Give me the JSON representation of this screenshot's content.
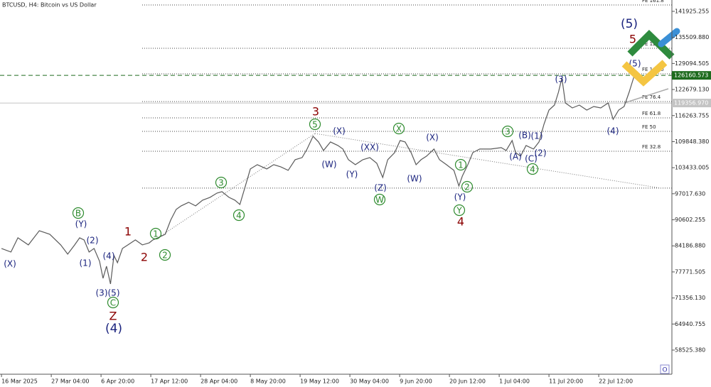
{
  "chart_data": {
    "type": "line",
    "title": "BTCUSD, H4:  Bitcoin vs US Dollar",
    "color": "#5a5a5a",
    "xlim": [
      -0.03,
      13.47
    ],
    "xticks": [
      {
        "value": 0,
        "label": "16 Mar 2025"
      },
      {
        "value": 1,
        "label": "27 Mar 04:00"
      },
      {
        "value": 2,
        "label": "6 Apr 20:00"
      },
      {
        "value": 3,
        "label": "17 Apr 12:00"
      },
      {
        "value": 4,
        "label": "28 Apr 04:00"
      },
      {
        "value": 5,
        "label": "8 May 20:00"
      },
      {
        "value": 6,
        "label": "19 May 12:00"
      },
      {
        "value": 7,
        "label": "30 May 04:00"
      },
      {
        "value": 8,
        "label": "9 Jun 20:00"
      },
      {
        "value": 9,
        "label": "20 Jun 12:00"
      },
      {
        "value": 10,
        "label": "1 Jul 04:00"
      },
      {
        "value": 11,
        "label": "11 Jul 20:00"
      },
      {
        "value": 12,
        "label": "22 Jul 12:00"
      }
    ],
    "ylim": [
      52580,
      144720
    ],
    "yticks": [
      141925.255,
      {
        "value": 135509.88,
        "label": "135509.880"
      },
      129094.505,
      {
        "value": 122679.13,
        "label": "122679.130"
      },
      116263.755,
      {
        "value": 109848.38,
        "label": "109848.380"
      },
      103433.005,
      {
        "value": 97017.63,
        "label": "97017.630"
      },
      90602.255,
      {
        "value": 84186.88,
        "label": "84186.880"
      },
      77771.505,
      {
        "value": 71356.13,
        "label": "71356.130"
      },
      64940.755,
      {
        "value": 58525.38,
        "label": "58525.380"
      }
    ],
    "x": [
      0,
      0.19,
      0.33,
      0.54,
      0.76,
      0.97,
      1.19,
      1.33,
      1.47,
      1.57,
      1.66,
      1.76,
      1.86,
      1.97,
      2.04,
      2.11,
      2.19,
      2.26,
      2.33,
      2.43,
      2.54,
      2.69,
      2.83,
      2.97,
      3.04,
      3.14,
      3.29,
      3.4,
      3.51,
      3.61,
      3.76,
      3.9,
      4.04,
      4.19,
      4.33,
      4.43,
      4.57,
      4.69,
      4.79,
      4.9,
      5,
      5.14,
      5.33,
      5.47,
      5.61,
      5.76,
      5.9,
      6.04,
      6.14,
      6.26,
      6.37,
      6.47,
      6.61,
      6.76,
      6.86,
      6.97,
      7.11,
      7.26,
      7.4,
      7.54,
      7.66,
      7.76,
      7.9,
      8.01,
      8.11,
      8.23,
      8.33,
      8.43,
      8.54,
      8.69,
      8.8,
      8.94,
      9.09,
      9.19,
      9.26,
      9.37,
      9.47,
      9.61,
      9.83,
      10.04,
      10.14,
      10.26,
      10.33,
      10.43,
      10.54,
      10.69,
      10.8,
      10.9,
      11,
      11.11,
      11.19,
      11.26,
      11.33,
      11.47,
      11.61,
      11.76,
      11.9,
      12.04,
      12.19,
      12.29,
      12.4,
      12.51,
      12.61,
      12.73
    ],
    "values": [
      83542,
      82668,
      86164,
      84416,
      87912,
      87038,
      84416,
      82143,
      84416,
      86164,
      85639,
      82668,
      83542,
      80395,
      76200,
      79172,
      74802,
      81794,
      80046,
      83542,
      84416,
      85639,
      84416,
      84940,
      85639,
      86164,
      87038,
      90534,
      93156,
      94030,
      94904,
      94030,
      95428,
      96127,
      97176,
      97526,
      96127,
      95428,
      94379,
      98924,
      103119,
      104168,
      103119,
      104168,
      103644,
      102770,
      105392,
      105916,
      108014,
      111160,
      109762,
      107664,
      109762,
      108888,
      108014,
      105392,
      104168,
      105392,
      105916,
      104518,
      101022,
      105392,
      107140,
      110111,
      109762,
      107140,
      104168,
      105392,
      106266,
      108014,
      105392,
      104168,
      102770,
      98924,
      101371,
      104168,
      107140,
      108014,
      108014,
      108363,
      107664,
      110111,
      107140,
      106266,
      108888,
      108014,
      109762,
      114132,
      117628,
      118851,
      121998,
      125494,
      119376,
      118152,
      118851,
      117628,
      118502,
      118152,
      119376,
      115355,
      117628,
      118502,
      121998,
      126717
    ],
    "levels": [
      {
        "label": "FE 161.8",
        "value": 143498
      },
      {
        "label": "FE 127.2",
        "value": 132835
      },
      {
        "label": "FE 100.0",
        "value": 126543
      },
      {
        "label": "FE 76.4",
        "value": 119726
      },
      {
        "label": "FE 61.8",
        "value": 115705
      },
      {
        "label": "FE 50",
        "value": 112384
      },
      {
        "label": "FE 32.8",
        "value": 107490
      },
      {
        "value": 98400
      }
    ],
    "target_price": {
      "value": 126160.573,
      "label": "126160.573",
      "color": "#1e6b1e"
    },
    "last_price": {
      "value": 119356.97,
      "label": "119356.970",
      "color": "#c4c4c4"
    },
    "annotations": [
      {
        "text": "B",
        "color": "#2e8b2e",
        "circled": true
      },
      {
        "text": "1",
        "color": "#2e8b2e",
        "circled": true
      },
      {
        "text": "2",
        "color": "#2e8b2e",
        "circled": true
      },
      {
        "text": "3",
        "color": "#2e8b2e",
        "circled": true
      },
      {
        "text": "4",
        "color": "#2e8b2e",
        "circled": true
      },
      {
        "text": "5",
        "color": "#2e8b2e",
        "circled": true
      },
      {
        "text": "X",
        "color": "#2e8b2e",
        "circled": true
      },
      {
        "text": "W",
        "color": "#2e8b2e",
        "circled": true
      },
      {
        "text": "3",
        "color": "#2e8b2e",
        "circled": true
      },
      {
        "text": "1",
        "color": "#2e8b2e",
        "circled": true
      },
      {
        "text": "2",
        "color": "#2e8b2e",
        "circled": true
      },
      {
        "text": "Y",
        "color": "#2e8b2e",
        "circled": true
      },
      {
        "text": "C",
        "color": "#2e8b2e",
        "circled": true
      },
      {
        "text": "4",
        "color": "#2e8b2e",
        "circled": true
      },
      {
        "text": "(X)",
        "color": "#1a237e"
      },
      {
        "text": "(Y)",
        "color": "#1a237e"
      },
      {
        "text": "(2)",
        "color": "#1a237e"
      },
      {
        "text": "(1)",
        "color": "#1a237e"
      },
      {
        "text": "(4)",
        "color": "#1a237e"
      },
      {
        "text": "(3)",
        "color": "#1a237e"
      },
      {
        "text": "(5)",
        "color": "#1a237e"
      },
      {
        "text": "(X)",
        "color": "#1a237e"
      },
      {
        "text": "(W)",
        "color": "#1a237e"
      },
      {
        "text": "(Y)",
        "color": "#1a237e"
      },
      {
        "text": "(XX)",
        "color": "#1a237e"
      },
      {
        "text": "(X)",
        "color": "#1a237e"
      },
      {
        "text": "(Z)",
        "color": "#1a237e"
      },
      {
        "text": "(W)",
        "color": "#1a237e"
      },
      {
        "text": "(Y)",
        "color": "#1a237e"
      },
      {
        "text": "(A)",
        "color": "#1a237e"
      },
      {
        "text": "(B)",
        "color": "#1a237e"
      },
      {
        "text": "(1)",
        "color": "#1a237e"
      },
      {
        "text": "(C)",
        "color": "#1a237e"
      },
      {
        "text": "(2)",
        "color": "#1a237e"
      },
      {
        "text": "(3)",
        "color": "#1a237e"
      },
      {
        "text": "(4)",
        "color": "#1a237e"
      },
      {
        "text": "(5)",
        "color": "#1a237e"
      },
      {
        "text": "(4)",
        "color": "#1a237e"
      },
      {
        "text": "(5)",
        "color": "#1a237e"
      },
      {
        "text": "1",
        "color": "#8b0000"
      },
      {
        "text": "2",
        "color": "#8b0000"
      },
      {
        "text": "3",
        "color": "#8b0000"
      },
      {
        "text": "4",
        "color": "#8b0000"
      },
      {
        "text": "5",
        "color": "#8b0000"
      },
      {
        "text": "Z",
        "color": "#8b0000"
      }
    ]
  }
}
